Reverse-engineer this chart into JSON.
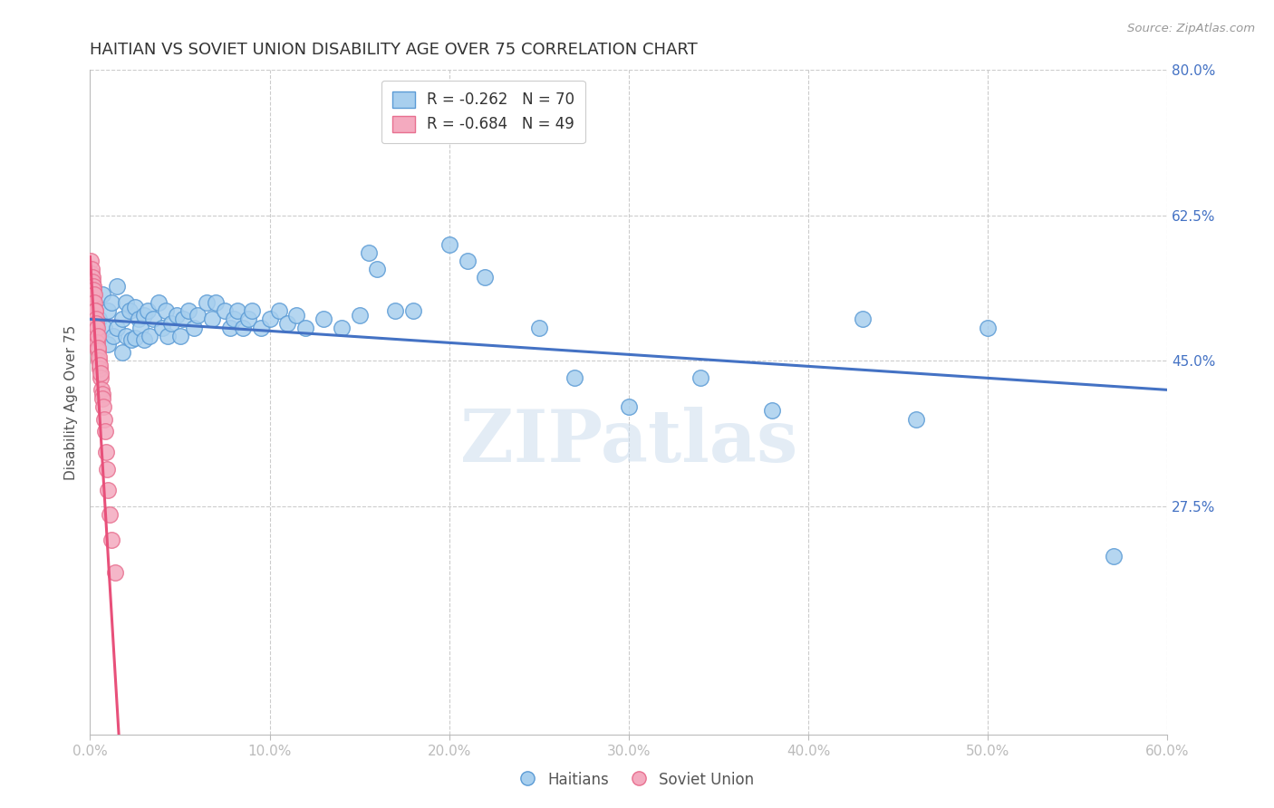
{
  "title": "HAITIAN VS SOVIET UNION DISABILITY AGE OVER 75 CORRELATION CHART",
  "source": "Source: ZipAtlas.com",
  "ylabel": "Disability Age Over 75",
  "watermark": "ZIPatlas",
  "legend_blue_r": "R = -0.262",
  "legend_blue_n": "N = 70",
  "legend_pink_r": "R = -0.684",
  "legend_pink_n": "N = 49",
  "xmin": 0.0,
  "xmax": 0.6,
  "ymin": 0.0,
  "ymax": 0.8,
  "yticks": [
    0.275,
    0.45,
    0.625,
    0.8
  ],
  "ytick_labels": [
    "27.5%",
    "45.0%",
    "62.5%",
    "80.0%"
  ],
  "xticks": [
    0.0,
    0.1,
    0.2,
    0.3,
    0.4,
    0.5,
    0.6
  ],
  "xtick_labels": [
    "0.0%",
    "10.0%",
    "20.0%",
    "30.0%",
    "40.0%",
    "50.0%",
    "60.0%"
  ],
  "blue_color": "#A8CFEE",
  "pink_color": "#F4AABF",
  "blue_edge_color": "#5B9BD5",
  "pink_edge_color": "#E87090",
  "blue_line_color": "#4472C4",
  "pink_line_color": "#E8507A",
  "axis_color": "#4472C4",
  "blue_scatter_x": [
    0.005,
    0.007,
    0.008,
    0.01,
    0.01,
    0.012,
    0.013,
    0.015,
    0.015,
    0.018,
    0.018,
    0.02,
    0.02,
    0.022,
    0.023,
    0.025,
    0.025,
    0.027,
    0.028,
    0.03,
    0.03,
    0.032,
    0.033,
    0.035,
    0.038,
    0.04,
    0.042,
    0.043,
    0.045,
    0.048,
    0.05,
    0.052,
    0.055,
    0.058,
    0.06,
    0.065,
    0.068,
    0.07,
    0.075,
    0.078,
    0.08,
    0.082,
    0.085,
    0.088,
    0.09,
    0.095,
    0.1,
    0.105,
    0.11,
    0.115,
    0.12,
    0.13,
    0.14,
    0.15,
    0.155,
    0.16,
    0.17,
    0.18,
    0.2,
    0.21,
    0.22,
    0.25,
    0.27,
    0.3,
    0.34,
    0.38,
    0.43,
    0.46,
    0.5,
    0.57
  ],
  "blue_scatter_y": [
    0.5,
    0.53,
    0.49,
    0.51,
    0.47,
    0.52,
    0.48,
    0.54,
    0.49,
    0.5,
    0.46,
    0.52,
    0.48,
    0.51,
    0.475,
    0.515,
    0.478,
    0.5,
    0.49,
    0.505,
    0.475,
    0.51,
    0.48,
    0.5,
    0.52,
    0.49,
    0.51,
    0.48,
    0.495,
    0.505,
    0.48,
    0.5,
    0.51,
    0.49,
    0.505,
    0.52,
    0.5,
    0.52,
    0.51,
    0.49,
    0.5,
    0.51,
    0.49,
    0.5,
    0.51,
    0.49,
    0.5,
    0.51,
    0.495,
    0.505,
    0.49,
    0.5,
    0.49,
    0.505,
    0.58,
    0.56,
    0.51,
    0.51,
    0.59,
    0.57,
    0.55,
    0.49,
    0.43,
    0.395,
    0.43,
    0.39,
    0.5,
    0.38,
    0.49,
    0.215
  ],
  "pink_scatter_x": [
    0.0005,
    0.0005,
    0.0007,
    0.0008,
    0.001,
    0.001,
    0.0012,
    0.0013,
    0.0015,
    0.0015,
    0.0017,
    0.0018,
    0.002,
    0.002,
    0.0022,
    0.0023,
    0.0025,
    0.0025,
    0.0027,
    0.0028,
    0.003,
    0.003,
    0.0032,
    0.0033,
    0.0035,
    0.0037,
    0.0038,
    0.004,
    0.0042,
    0.0043,
    0.0045,
    0.0048,
    0.005,
    0.0052,
    0.0055,
    0.0058,
    0.006,
    0.0065,
    0.0068,
    0.007,
    0.0075,
    0.008,
    0.0085,
    0.009,
    0.0095,
    0.01,
    0.011,
    0.012,
    0.014
  ],
  "pink_scatter_y": [
    0.57,
    0.545,
    0.555,
    0.53,
    0.56,
    0.535,
    0.55,
    0.525,
    0.545,
    0.52,
    0.54,
    0.515,
    0.535,
    0.51,
    0.53,
    0.505,
    0.52,
    0.498,
    0.51,
    0.492,
    0.51,
    0.488,
    0.5,
    0.482,
    0.495,
    0.478,
    0.49,
    0.472,
    0.48,
    0.462,
    0.465,
    0.45,
    0.455,
    0.44,
    0.445,
    0.43,
    0.435,
    0.415,
    0.41,
    0.405,
    0.395,
    0.38,
    0.365,
    0.34,
    0.32,
    0.295,
    0.265,
    0.235,
    0.195
  ],
  "blue_trend_x": [
    0.0,
    0.6
  ],
  "blue_trend_y": [
    0.5,
    0.415
  ],
  "pink_trend_x": [
    0.0,
    0.016
  ],
  "pink_trend_y": [
    0.575,
    0.0
  ],
  "background_color": "#FFFFFF",
  "grid_color": "#CCCCCC",
  "title_fontsize": 13,
  "axis_label_fontsize": 11,
  "tick_fontsize": 11,
  "legend_fontsize": 12
}
